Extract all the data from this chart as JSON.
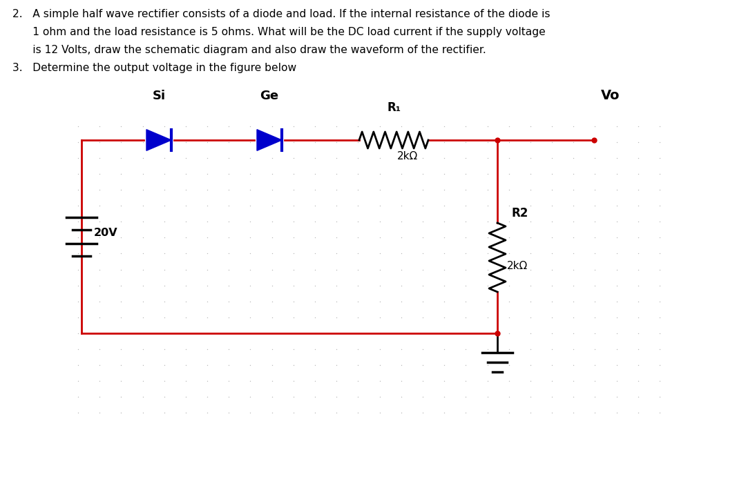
{
  "background_color": "#ffffff",
  "dot_color": "#b8b8b8",
  "wire_color": "#cc0000",
  "diode_color": "#0000cc",
  "text_color": "#000000",
  "label_si": "Si",
  "label_ge": "Ge",
  "label_r1": "R₁",
  "label_r1_val": "2kΩ",
  "label_r2": "R2",
  "label_r2_val": "2kΩ",
  "label_vo": "Vo",
  "label_20v": "20V",
  "line1": "2.   A simple half wave rectifier consists of a diode and load. If the internal resistance of the diode is",
  "line2": "      1 ohm and the load resistance is 5 ohms. What will be the DC load current if the supply voltage",
  "line3": "      is 12 Volts, draw the schematic diagram and also draw the waveform of the rectifier.",
  "line4": "3.   Determine the output voltage in the figure below"
}
